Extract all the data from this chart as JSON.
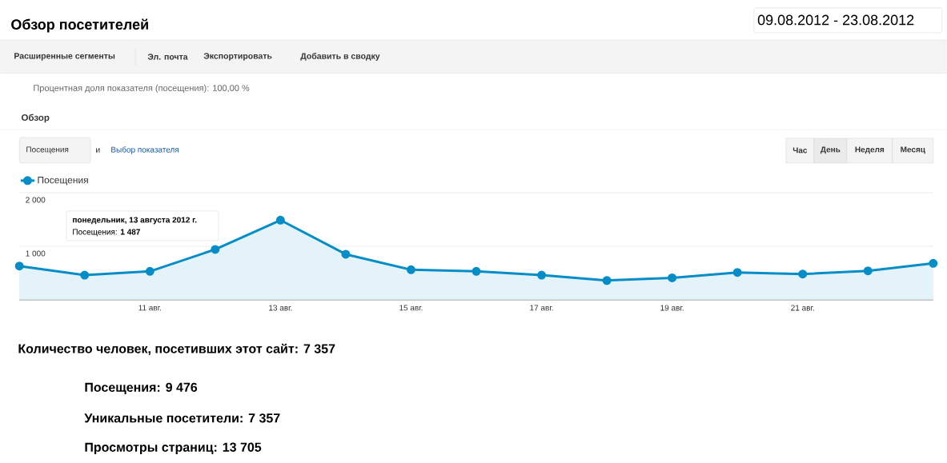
{
  "chart_data": {
    "type": "area",
    "title": "Обзор посетителей",
    "categories": [
      null,
      null,
      "11 авг.",
      null,
      "13 авг.",
      null,
      "15 авг.",
      null,
      "17 авг.",
      null,
      "19 авг.",
      null,
      "21 авг.",
      null,
      null
    ],
    "series": [
      {
        "name": "Посещения",
        "color": "#058dc7",
        "values": [
          630,
          460,
          530,
          940,
          1487,
          850,
          560,
          530,
          460,
          360,
          410,
          510,
          480,
          540,
          680
        ]
      }
    ],
    "ylim": [
      0,
      2000
    ],
    "yticks": [
      {
        "value": 1000,
        "label": "1 000"
      },
      {
        "value": 2000,
        "label": "2 000"
      }
    ],
    "grid": "y",
    "legend": "top left",
    "marker": "circle",
    "annotations": [
      "09.08.2012 - 23.08.2012",
      "Расширенные сегменты",
      "Эл. почта",
      "Экспортировать",
      "Добавить в сводку",
      "Процентная доля показателя (посещения): 100,00 %",
      "Обзор",
      "Посещения",
      "и",
      "Выбор показателя",
      "Час",
      "День",
      "Неделя",
      "Месяц",
      "Количество человек, посетивших этот сайт: 7 357",
      "Посещения: 9 476",
      "Уникальные посетители: 7 357",
      "Просмотры страниц: 13 705",
      "понедельник, 13 августа 2012 г.",
      "Посещения: **1 487**"
    ]
  }
}
